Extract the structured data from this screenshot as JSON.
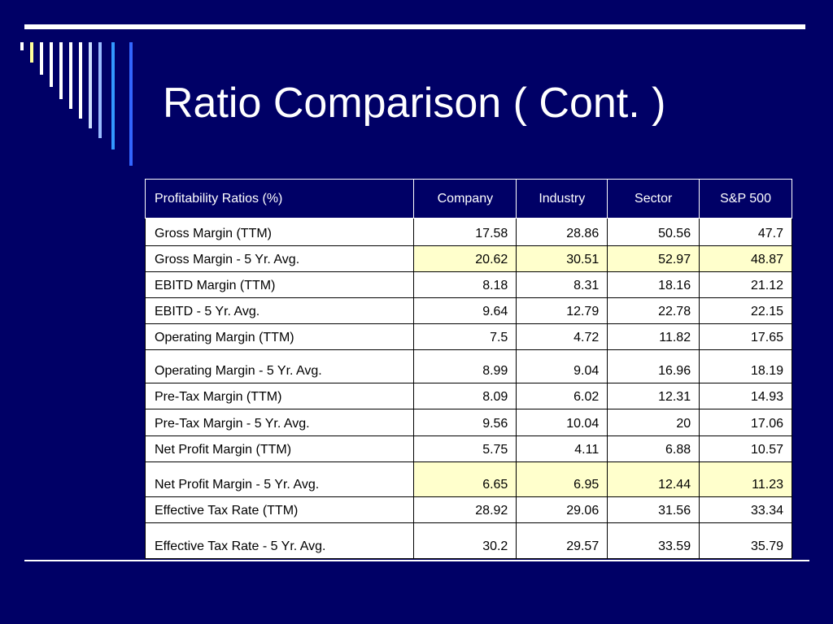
{
  "slide": {
    "title": "Ratio Comparison ( Cont. )",
    "background_color": "#000066",
    "stripe_colors": [
      "#ffffff",
      "#ffff99",
      "#ffffff",
      "#ffffff",
      "#ffffff",
      "#ffffff",
      "#ffffff",
      "#ccddff",
      "#99bbff",
      "#3399ff",
      "#3366ff"
    ]
  },
  "table": {
    "headers": [
      "Profitability Ratios (%)",
      "Company",
      "Industry",
      "Sector",
      "S&P 500"
    ],
    "rows": [
      {
        "label": "Gross Margin (TTM)",
        "values": [
          "17.58",
          "28.86",
          "50.56",
          "47.7"
        ],
        "highlight": false
      },
      {
        "label": "Gross Margin - 5 Yr. Avg.",
        "values": [
          "20.62",
          "30.51",
          "52.97",
          "48.87"
        ],
        "highlight": true
      },
      {
        "label": "EBITD Margin (TTM)",
        "values": [
          "8.18",
          "8.31",
          "18.16",
          "21.12"
        ],
        "highlight": false
      },
      {
        "label": "EBITD - 5 Yr. Avg.",
        "values": [
          "9.64",
          "12.79",
          "22.78",
          "22.15"
        ],
        "highlight": false
      },
      {
        "label": "Operating Margin (TTM)",
        "values": [
          "7.5",
          "4.72",
          "11.82",
          "17.65"
        ],
        "highlight": false
      },
      {
        "label": "Operating Margin - 5 Yr. Avg.",
        "values": [
          "8.99",
          "9.04",
          "16.96",
          "18.19"
        ],
        "highlight": false
      },
      {
        "label": "Pre-Tax Margin (TTM)",
        "values": [
          "8.09",
          "6.02",
          "12.31",
          "14.93"
        ],
        "highlight": false
      },
      {
        "label": "Pre-Tax Margin - 5 Yr. Avg.",
        "values": [
          "9.56",
          "10.04",
          "20",
          "17.06"
        ],
        "highlight": false
      },
      {
        "label": "Net Profit Margin (TTM)",
        "values": [
          "5.75",
          "4.11",
          "6.88",
          "10.57"
        ],
        "highlight": false
      },
      {
        "label": "Net Profit Margin - 5 Yr. Avg.",
        "values": [
          "6.65",
          "6.95",
          "12.44",
          "11.23"
        ],
        "highlight": true
      },
      {
        "label": "Effective Tax Rate (TTM)",
        "values": [
          "28.92",
          "29.06",
          "31.56",
          "33.34"
        ],
        "highlight": false
      },
      {
        "label": "Effective Tax Rate - 5 Yr. Avg.",
        "values": [
          "30.2",
          "29.57",
          "33.59",
          "35.79"
        ],
        "highlight": false
      }
    ]
  }
}
